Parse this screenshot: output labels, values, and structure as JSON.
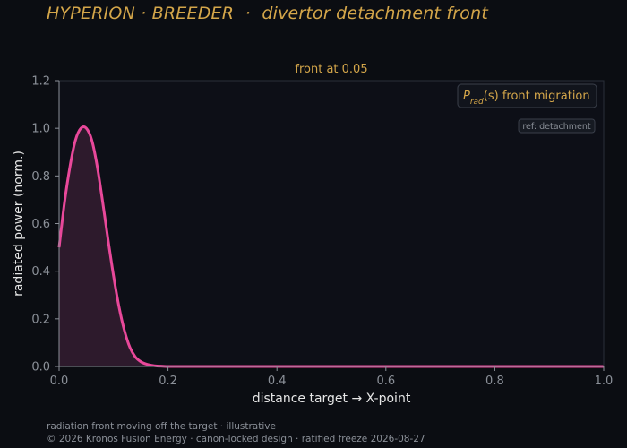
{
  "header": {
    "title": "HYPERION · BREEDER  ·  divertor detachment front"
  },
  "footer": {
    "note": "radiation front moving off the target · illustrative",
    "copyright": "© 2026 Kronos Fusion Energy · canon-locked design · ratified freeze 2026-08-27"
  },
  "colors": {
    "background": "#0b0d12",
    "plot_background": "#0d0f17",
    "line": "#e8489a",
    "fill": "#2d1a2c",
    "title": "#d4a64a",
    "axis": "#8b9098"
  },
  "chart_data": {
    "type": "area",
    "subtitle": "front at 0.05",
    "xlabel": "distance target → X-point",
    "ylabel": "radiated power (norm.)",
    "xlim": [
      0,
      1
    ],
    "ylim": [
      0,
      1.2
    ],
    "xticks": [
      "0.0",
      "0.2",
      "0.4",
      "0.6",
      "0.8",
      "1.0"
    ],
    "yticks": [
      "0.0",
      "0.2",
      "0.4",
      "0.6",
      "0.8",
      "1.0",
      "1.2"
    ],
    "grid": false,
    "legend": {
      "placement": "top-right",
      "label_prefix": "P",
      "label_sub": "rad",
      "label_suffix": "(s) front migration"
    },
    "annotation": "ref: detachment",
    "series": [
      {
        "x": [
          0.0,
          0.01,
          0.02,
          0.03,
          0.04,
          0.05,
          0.06,
          0.07,
          0.08,
          0.09,
          0.1,
          0.11,
          0.12,
          0.13,
          0.14,
          0.15,
          0.16,
          0.17,
          0.18,
          0.19,
          0.2,
          0.22,
          0.25,
          0.3,
          0.4,
          0.5,
          0.6,
          0.7,
          0.8,
          0.9,
          1.0
        ],
        "y": [
          0.5,
          0.69,
          0.84,
          0.95,
          1.0,
          1.0,
          0.95,
          0.84,
          0.69,
          0.53,
          0.38,
          0.25,
          0.15,
          0.08,
          0.04,
          0.02,
          0.01,
          0.005,
          0.002,
          0.001,
          0.0,
          0.0,
          0.0,
          0.0,
          0.0,
          0.0,
          0.0,
          0.0,
          0.0,
          0.0,
          0.0
        ]
      }
    ]
  }
}
